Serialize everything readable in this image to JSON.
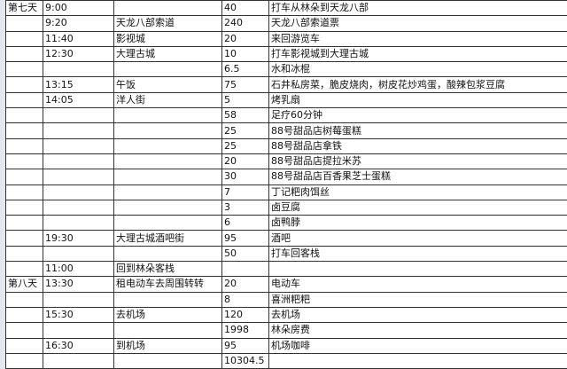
{
  "rows": [
    {
      "day": "第七天",
      "time": "9:00",
      "place": "",
      "cost": "40",
      "note": "打车从林朵到天龙八部"
    },
    {
      "day": "",
      "time": "9:20",
      "place": "天龙八部索道",
      "cost": "240",
      "note": "天龙八部索道票"
    },
    {
      "day": "",
      "time": "11:40",
      "place": "影视城",
      "cost": "20",
      "note": "来回游览车"
    },
    {
      "day": "",
      "time": "12:30",
      "place": "大理古城",
      "cost": "10",
      "note": "打车影视城到大理古城"
    },
    {
      "day": "",
      "time": "",
      "place": "",
      "cost": "6.5",
      "note": "水和冰棍"
    },
    {
      "day": "",
      "time": "13:15",
      "place": "午饭",
      "cost": "75",
      "note": "石井私房菜，脆皮烧肉，树皮花炒鸡蛋，酸辣包浆豆腐"
    },
    {
      "day": "",
      "time": "14:05",
      "place": "洋人街",
      "cost": "5",
      "note": "烤乳扇"
    },
    {
      "day": "",
      "time": "",
      "place": "",
      "cost": "58",
      "note": "足疗60分钟"
    },
    {
      "day": "",
      "time": "",
      "place": "",
      "cost": "25",
      "note": "88号甜品店树莓蛋糕"
    },
    {
      "day": "",
      "time": "",
      "place": "",
      "cost": "25",
      "note": "88号甜品店拿铁"
    },
    {
      "day": "",
      "time": "",
      "place": "",
      "cost": "20",
      "note": "88号甜品店提拉米苏"
    },
    {
      "day": "",
      "time": "",
      "place": "",
      "cost": "30",
      "note": "88号甜品店百香果芝士蛋糕"
    },
    {
      "day": "",
      "time": "",
      "place": "",
      "cost": "7",
      "note": "丁记粑肉饵丝"
    },
    {
      "day": "",
      "time": "",
      "place": "",
      "cost": "3",
      "note": "卤豆腐"
    },
    {
      "day": "",
      "time": "",
      "place": "",
      "cost": "6",
      "note": "卤鸭脖"
    },
    {
      "day": "",
      "time": "19:30",
      "place": "大理古城酒吧街",
      "cost": "95",
      "note": "酒吧"
    },
    {
      "day": "",
      "time": "",
      "place": "",
      "cost": "50",
      "note": "打车回客栈"
    },
    {
      "day": "",
      "time": "11:00",
      "place": "回到林朵客栈",
      "cost": "",
      "note": ""
    },
    {
      "day": "第八天",
      "time": "13:30",
      "place": "租电动车去周围转转",
      "cost": "20",
      "note": "电动车"
    },
    {
      "day": "",
      "time": "",
      "place": "",
      "cost": "8",
      "note": "喜洲粑粑"
    },
    {
      "day": "",
      "time": "15:30",
      "place": "去机场",
      "cost": "120",
      "note": "去机场"
    },
    {
      "day": "",
      "time": "",
      "place": "",
      "cost": "1998",
      "note": "林朵房费"
    },
    {
      "day": "",
      "time": "16:30",
      "place": "到机场",
      "cost": "95",
      "note": "机场咖啡"
    },
    {
      "day": "",
      "time": "",
      "place": "",
      "cost": "10304.5",
      "note": ""
    }
  ]
}
